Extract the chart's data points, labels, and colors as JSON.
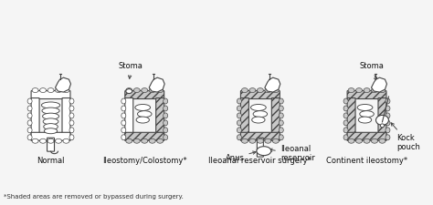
{
  "background_color": "#f5f5f5",
  "labels": {
    "panel1": "Normal",
    "panel2": "Ileostomy/Colostomy*",
    "panel3": "Ileoanal reservoir surgery*",
    "panel4": "Continent ileostomy*"
  },
  "annotations": {
    "stoma2": "Stoma",
    "stoma4": "Stoma",
    "anus3": "Anus",
    "ileoanal3": "Ileoanal\nreservoir",
    "kock4": "Kock\npouch"
  },
  "footnote": "*Shaded areas are removed or bypassed during surgery.",
  "shade_color": "#c8c8c8",
  "outline_color": "#444444",
  "lw": 0.8,
  "fig_width": 4.74,
  "fig_height": 2.25,
  "dpi": 100
}
